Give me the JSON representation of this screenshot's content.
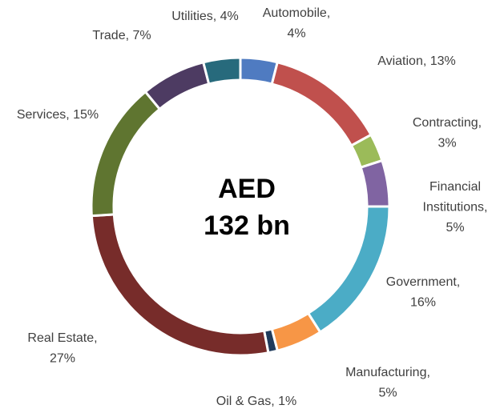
{
  "chart_data": {
    "type": "donut",
    "center_text": [
      "AED",
      "132 bn"
    ],
    "values": [
      4,
      13,
      3,
      5,
      16,
      5,
      1,
      27,
      15,
      7,
      4
    ],
    "value_labels": [
      [
        "Automobile,",
        "4%"
      ],
      [
        "Aviation, 13%"
      ],
      [
        "Contracting,",
        "3%"
      ],
      [
        "Financial",
        "Institutions,",
        "5%"
      ],
      [
        "Government,",
        "16%"
      ],
      [
        "Manufacturing,",
        "5%"
      ],
      [
        "Oil & Gas, 1%"
      ],
      [
        "Real Estate,",
        "27%"
      ],
      [
        "Services, 15%"
      ],
      [
        "Trade, 7%"
      ],
      [
        "Utilities, 4%"
      ]
    ],
    "colors": [
      "#4f7bc1",
      "#c0504d",
      "#9bbb59",
      "#8064a2",
      "#4bacc6",
      "#f79646",
      "#1f3b5c",
      "#772c2a",
      "#5f7530",
      "#4d3b62",
      "#276a7c"
    ]
  }
}
